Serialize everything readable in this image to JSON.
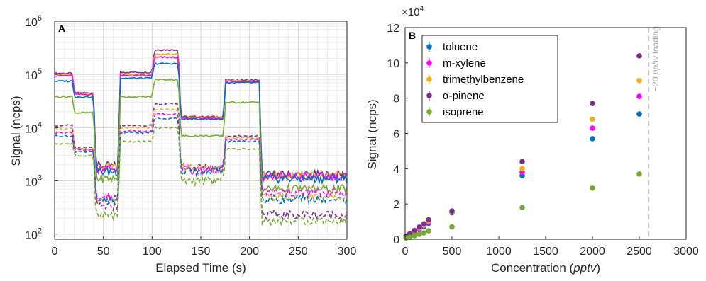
{
  "chart_data": [
    {
      "panel_label": "A",
      "type": "line",
      "xlabel": "Elapsed Time (s)",
      "ylabel": "Signal (ncps)",
      "xlim": [
        0,
        300
      ],
      "ylim": [
        80,
        1000000
      ],
      "yscale": "log",
      "grid": true,
      "x_ticks": [
        "0",
        "50",
        "100",
        "150",
        "200",
        "250",
        "300"
      ],
      "y_ticks": [
        {
          "base": "10",
          "exp": "2",
          "value": 100
        },
        {
          "base": "10",
          "exp": "3",
          "value": 1000
        },
        {
          "base": "10",
          "exp": "4",
          "value": 10000
        },
        {
          "base": "10",
          "exp": "5",
          "value": 100000
        },
        {
          "base": "10",
          "exp": "6",
          "value": 1000000
        }
      ],
      "segment_times": [
        0,
        18,
        40,
        65,
        100,
        127,
        173,
        210,
        300
      ],
      "series": [
        {
          "color": "#7e2f8e",
          "dash": false,
          "levels": [
            105000,
            45000,
            1900,
            110000,
            290000,
            16000,
            78000,
            1300
          ]
        },
        {
          "color": "#edb120",
          "dash": false,
          "levels": [
            100000,
            43000,
            1800,
            100000,
            240000,
            15500,
            76000,
            1250
          ]
        },
        {
          "color": "#ff00ff",
          "dash": false,
          "levels": [
            95000,
            42000,
            1700,
            95000,
            210000,
            15000,
            74000,
            1200
          ]
        },
        {
          "color": "#0072bd",
          "dash": false,
          "levels": [
            75000,
            38000,
            1500,
            85000,
            160000,
            14500,
            70000,
            1100
          ]
        },
        {
          "color": "#77ac30",
          "dash": false,
          "levels": [
            38000,
            19000,
            1100,
            38000,
            80000,
            7000,
            30000,
            700
          ]
        },
        {
          "color": "#7e2f8e",
          "dash": true,
          "levels": [
            11000,
            4200,
            330,
            11000,
            28000,
            1800,
            7000,
            230
          ]
        },
        {
          "color": "#edb120",
          "dash": true,
          "levels": [
            9500,
            4000,
            450,
            10000,
            22000,
            1700,
            6500,
            500
          ]
        },
        {
          "color": "#ff00ff",
          "dash": true,
          "levels": [
            8000,
            3800,
            500,
            8500,
            18000,
            1600,
            6000,
            600
          ]
        },
        {
          "color": "#0072bd",
          "dash": true,
          "levels": [
            7000,
            3500,
            450,
            8000,
            15000,
            1500,
            5500,
            450
          ]
        },
        {
          "color": "#77ac30",
          "dash": true,
          "levels": [
            5000,
            3000,
            220,
            5500,
            10000,
            1000,
            4000,
            180
          ]
        }
      ]
    },
    {
      "panel_label": "B",
      "type": "scatter",
      "xlabel_text": "Concentration (",
      "xlabel_italic": "pptv",
      "xlabel_close": ")",
      "ylabel": "Signal (ncps)",
      "xlim": [
        0,
        3000
      ],
      "ylim": [
        0,
        120000
      ],
      "y_exponent": {
        "base": "×10",
        "exp": "4"
      },
      "x_ticks": [
        "0",
        "500",
        "1000",
        "1500",
        "2000",
        "2500",
        "3000"
      ],
      "y_ticks": [
        "0",
        "2",
        "4",
        "6",
        "8",
        "10",
        "12"
      ],
      "annotation": {
        "x": 2600,
        "text_prefix": "~20 ",
        "text_italic": "ppbv",
        "text_suffix": " loading"
      },
      "legend_position": "top-left",
      "x": [
        10,
        50,
        100,
        150,
        200,
        250,
        500,
        1250,
        2000,
        2500
      ],
      "series": [
        {
          "name": "toluene",
          "color": "#0072bd",
          "values": [
            1500,
            2500,
            4000,
            5500,
            7000,
            9000,
            15000,
            36000,
            57000,
            71000
          ]
        },
        {
          "name": "m-xylene",
          "color": "#ff00ff",
          "values": [
            1600,
            2700,
            4300,
            6000,
            7700,
            9600,
            16000,
            38000,
            63000,
            81000
          ]
        },
        {
          "name": "trimethylbenzene",
          "color": "#edb120",
          "values": [
            1700,
            2900,
            4600,
            6400,
            8100,
            10300,
            15500,
            40000,
            68000,
            90000
          ]
        },
        {
          "name": "α-pinene",
          "color": "#7e2f8e",
          "values": [
            1800,
            3100,
            5000,
            6900,
            8700,
            11000,
            16000,
            44000,
            77000,
            104000
          ]
        },
        {
          "name": "isoprene",
          "color": "#77ac30",
          "values": [
            700,
            1100,
            2000,
            2800,
            3600,
            4800,
            7000,
            18000,
            29000,
            37000
          ]
        }
      ]
    }
  ]
}
